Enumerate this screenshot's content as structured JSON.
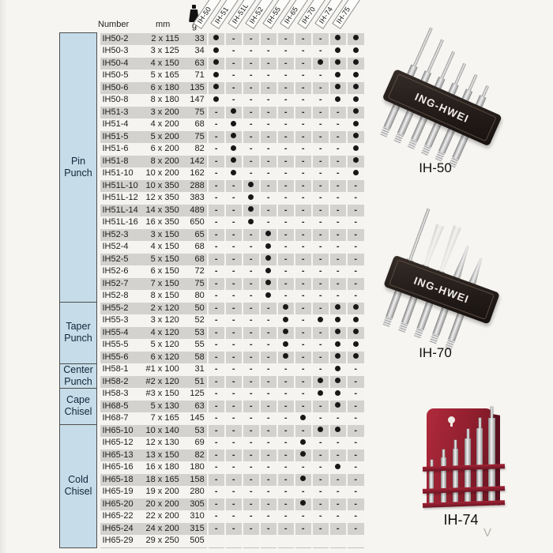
{
  "page": {
    "footer_mark": "V"
  },
  "colors": {
    "background": "#f6f5f1",
    "row_shaded": "#d3d2ce",
    "row_plain": "#f5f4f0",
    "group_cell_blue": "#c6dde9",
    "dot": "#181818",
    "rack_red": "#8e1e2d",
    "holder_black": "#221b18"
  },
  "icons": {
    "weight": "calibration-weight-icon"
  },
  "table": {
    "header": {
      "number": "Number",
      "mm": "mm",
      "g": "g",
      "sets": [
        "IH-50",
        "IH-51",
        "IH-51L",
        "IH-52",
        "IH-55",
        "IH-65",
        "IH-70",
        "IH-74",
        "IH-75"
      ]
    },
    "groups": [
      {
        "label": "Pin Punch",
        "rows": [
          {
            "number": "IH50-2",
            "mm": "2 x 115",
            "g": "33",
            "sets": "D------DD"
          },
          {
            "number": "IH50-3",
            "mm": "3 x 125",
            "g": "34",
            "sets": "D------DD"
          },
          {
            "number": "IH50-4",
            "mm": "4 x 150",
            "g": "63",
            "sets": "D-----DDD"
          },
          {
            "number": "IH50-5",
            "mm": "5 x 165",
            "g": "71",
            "sets": "D------DD"
          },
          {
            "number": "IH50-6",
            "mm": "6 x 180",
            "g": "135",
            "sets": "D------DD"
          },
          {
            "number": "IH50-8",
            "mm": "8 x 180",
            "g": "147",
            "sets": "D------DD"
          },
          {
            "number": "IH51-3",
            "mm": "3 x 200",
            "g": "75",
            "sets": "-D------D"
          },
          {
            "number": "IH51-4",
            "mm": "4 x 200",
            "g": "68",
            "sets": "-D------D"
          },
          {
            "number": "IH51-5",
            "mm": "5 x 200",
            "g": "75",
            "sets": "-D------D"
          },
          {
            "number": "IH51-6",
            "mm": "6 x 200",
            "g": "82",
            "sets": "-D------D"
          },
          {
            "number": "IH51-8",
            "mm": "8 x 200",
            "g": "142",
            "sets": "-D------D"
          },
          {
            "number": "IH51-10",
            "mm": "10 x 200",
            "g": "162",
            "sets": "-D------D"
          },
          {
            "number": "IH51L-10",
            "mm": "10 x 350",
            "g": "288",
            "sets": "--D------"
          },
          {
            "number": "IH51L-12",
            "mm": "12 x 350",
            "g": "383",
            "sets": "--D------"
          },
          {
            "number": "IH51L-14",
            "mm": "14 x 350",
            "g": "489",
            "sets": "--D------"
          },
          {
            "number": "IH51L-16",
            "mm": "16 x 350",
            "g": "650",
            "sets": "--D------"
          },
          {
            "number": "IH52-3",
            "mm": "3 x 150",
            "g": "65",
            "sets": "---D-----"
          },
          {
            "number": "IH52-4",
            "mm": "4 x 150",
            "g": "68",
            "sets": "---D-----"
          },
          {
            "number": "IH52-5",
            "mm": "5 x 150",
            "g": "68",
            "sets": "---D-----"
          },
          {
            "number": "IH52-6",
            "mm": "6 x 150",
            "g": "72",
            "sets": "---D-----"
          },
          {
            "number": "IH52-7",
            "mm": "7 x 150",
            "g": "75",
            "sets": "---D-----"
          },
          {
            "number": "IH52-8",
            "mm": "8 x 150",
            "g": "80",
            "sets": "---D-----"
          }
        ]
      },
      {
        "label": "Taper Punch",
        "rows": [
          {
            "number": "IH55-2",
            "mm": "2 x 120",
            "g": "50",
            "sets": "----D--DD"
          },
          {
            "number": "IH55-3",
            "mm": "3 x 120",
            "g": "52",
            "sets": "----D-DDD"
          },
          {
            "number": "IH55-4",
            "mm": "4 x 120",
            "g": "53",
            "sets": "----D--DD"
          },
          {
            "number": "IH55-5",
            "mm": "5 x 120",
            "g": "55",
            "sets": "----D--DD"
          },
          {
            "number": "IH55-6",
            "mm": "6 x 120",
            "g": "58",
            "sets": "----D--DD"
          }
        ]
      },
      {
        "label": "Center Punch",
        "rows": [
          {
            "number": "IH58-1",
            "mm": "#1 x 100",
            "g": "31",
            "sets": "-------D-"
          },
          {
            "number": "IH58-2",
            "mm": "#2 x 120",
            "g": "51",
            "sets": "------DD-"
          }
        ]
      },
      {
        "label": "Cape Chisel",
        "rows": [
          {
            "number": "IH58-3",
            "mm": "#3 x 150",
            "g": "125",
            "sets": "------DD-"
          },
          {
            "number": "IH68-5",
            "mm": "5 x 130",
            "g": "63",
            "sets": "-------D-"
          },
          {
            "number": "IH68-7",
            "mm": "7 x 165",
            "g": "145",
            "sets": "-----D---"
          }
        ]
      },
      {
        "label": "Cold Chisel",
        "rows": [
          {
            "number": "IH65-10",
            "mm": "10 x 140",
            "g": "53",
            "sets": "------DD-"
          },
          {
            "number": "IH65-12",
            "mm": "12 x 130",
            "g": "69",
            "sets": "-----D---"
          },
          {
            "number": "IH65-13",
            "mm": "13 x 150",
            "g": "82",
            "sets": "-----D---"
          },
          {
            "number": "IH65-16",
            "mm": "16 x 180",
            "g": "180",
            "sets": "-------D-"
          },
          {
            "number": "IH65-18",
            "mm": "18 x 165",
            "g": "158",
            "sets": "-----D---"
          },
          {
            "number": "IH65-19",
            "mm": "19 x 200",
            "g": "280",
            "sets": "---------"
          },
          {
            "number": "IH65-20",
            "mm": "20 x 200",
            "g": "305",
            "sets": "-----D---"
          },
          {
            "number": "IH65-22",
            "mm": "22 x 200",
            "g": "310",
            "sets": "---------"
          },
          {
            "number": "IH65-24",
            "mm": "24 x 200",
            "g": "315",
            "sets": "---------"
          },
          {
            "number": "IH65-29",
            "mm": "29 x 250",
            "g": "505",
            "sets": "........."
          }
        ]
      }
    ]
  },
  "products": [
    {
      "id": "IH-50",
      "brand": "ING-HWEI"
    },
    {
      "id": "IH-70",
      "brand": "ING-HWEI"
    },
    {
      "id": "IH-74",
      "brand": ""
    }
  ]
}
